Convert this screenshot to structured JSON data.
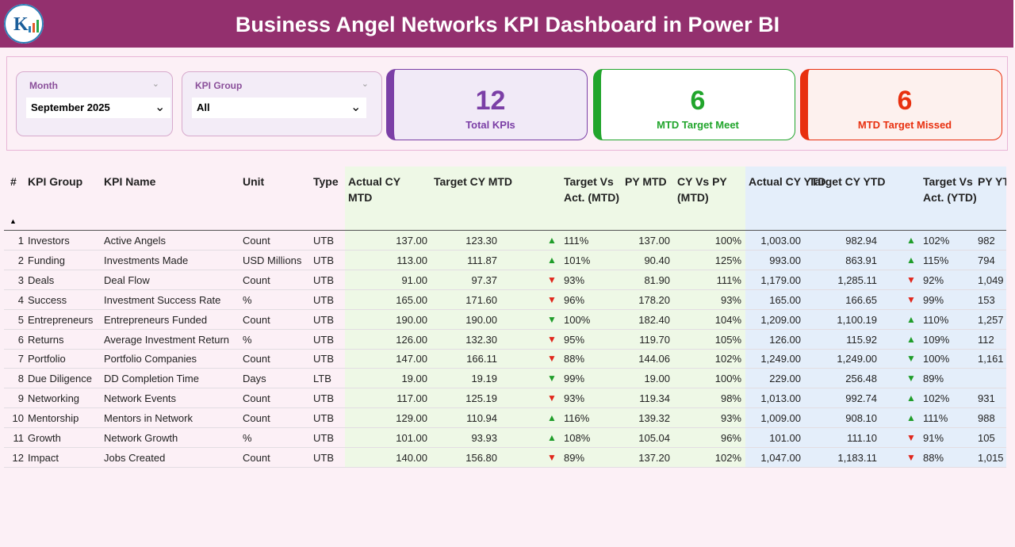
{
  "header": {
    "title": "Business Angel Networks KPI Dashboard in Power BI"
  },
  "filters": [
    {
      "label": "Month",
      "value": "September 2025"
    },
    {
      "label": "KPI Group",
      "value": "All"
    }
  ],
  "cards": [
    {
      "value": 12,
      "label": "Total KPIs",
      "color": "#7b3fa6"
    },
    {
      "value": 6,
      "label": "MTD Target Meet",
      "color": "#21a52c"
    },
    {
      "value": 6,
      "label": "MTD Target Missed",
      "color": "#e8300f"
    }
  ],
  "table": {
    "columns": [
      "#",
      "KPI Group",
      "KPI Name",
      "Unit",
      "Type",
      "Actual CY MTD",
      "Target CY MTD",
      "Target Vs Act. (MTD)",
      "PY MTD",
      "CY Vs PY (MTD)",
      "Actual CY YTD",
      "Target CY YTD",
      "Target Vs Act. (YTD)",
      "PY YTD"
    ],
    "sort_icon": "▲",
    "rows": [
      {
        "n": 1,
        "group": "Investors",
        "name": "Active Angels",
        "unit": "Count",
        "type": "UTB",
        "actual_mtd": "137.00",
        "target_mtd": "123.30",
        "mtd_arrow": {
          "symbol": "▲",
          "color": "#1f9d2a"
        },
        "mtd_pct": "111%",
        "py_mtd": "137.00",
        "cy_vs_py": "100%",
        "actual_ytd": "1,003.00",
        "target_ytd": "982.94",
        "ytd_arrow": {
          "symbol": "▲",
          "color": "#1f9d2a"
        },
        "ytd_pct": "102%",
        "py_ytd": "982"
      },
      {
        "n": 2,
        "group": "Funding",
        "name": "Investments Made",
        "unit": "USD Millions",
        "type": "UTB",
        "actual_mtd": "113.00",
        "target_mtd": "111.87",
        "mtd_arrow": {
          "symbol": "▲",
          "color": "#1f9d2a"
        },
        "mtd_pct": "101%",
        "py_mtd": "90.40",
        "cy_vs_py": "125%",
        "actual_ytd": "993.00",
        "target_ytd": "863.91",
        "ytd_arrow": {
          "symbol": "▲",
          "color": "#1f9d2a"
        },
        "ytd_pct": "115%",
        "py_ytd": "794"
      },
      {
        "n": 3,
        "group": "Deals",
        "name": "Deal Flow",
        "unit": "Count",
        "type": "UTB",
        "actual_mtd": "91.00",
        "target_mtd": "97.37",
        "mtd_arrow": {
          "symbol": "▼",
          "color": "#e0261b"
        },
        "mtd_pct": "93%",
        "py_mtd": "81.90",
        "cy_vs_py": "111%",
        "actual_ytd": "1,179.00",
        "target_ytd": "1,285.11",
        "ytd_arrow": {
          "symbol": "▼",
          "color": "#e0261b"
        },
        "ytd_pct": "92%",
        "py_ytd": "1,049"
      },
      {
        "n": 4,
        "group": "Success",
        "name": "Investment Success Rate",
        "unit": "%",
        "type": "UTB",
        "actual_mtd": "165.00",
        "target_mtd": "171.60",
        "mtd_arrow": {
          "symbol": "▼",
          "color": "#e0261b"
        },
        "mtd_pct": "96%",
        "py_mtd": "178.20",
        "cy_vs_py": "93%",
        "actual_ytd": "165.00",
        "target_ytd": "166.65",
        "ytd_arrow": {
          "symbol": "▼",
          "color": "#e0261b"
        },
        "ytd_pct": "99%",
        "py_ytd": "153"
      },
      {
        "n": 5,
        "group": "Entrepreneurs",
        "name": "Entrepreneurs Funded",
        "unit": "Count",
        "type": "UTB",
        "actual_mtd": "190.00",
        "target_mtd": "190.00",
        "mtd_arrow": {
          "symbol": "▼",
          "color": "#1f9d2a"
        },
        "mtd_pct": "100%",
        "py_mtd": "182.40",
        "cy_vs_py": "104%",
        "actual_ytd": "1,209.00",
        "target_ytd": "1,100.19",
        "ytd_arrow": {
          "symbol": "▲",
          "color": "#1f9d2a"
        },
        "ytd_pct": "110%",
        "py_ytd": "1,257"
      },
      {
        "n": 6,
        "group": "Returns",
        "name": "Average Investment Return",
        "unit": "%",
        "type": "UTB",
        "actual_mtd": "126.00",
        "target_mtd": "132.30",
        "mtd_arrow": {
          "symbol": "▼",
          "color": "#e0261b"
        },
        "mtd_pct": "95%",
        "py_mtd": "119.70",
        "cy_vs_py": "105%",
        "actual_ytd": "126.00",
        "target_ytd": "115.92",
        "ytd_arrow": {
          "symbol": "▲",
          "color": "#1f9d2a"
        },
        "ytd_pct": "109%",
        "py_ytd": "112"
      },
      {
        "n": 7,
        "group": "Portfolio",
        "name": "Portfolio Companies",
        "unit": "Count",
        "type": "UTB",
        "actual_mtd": "147.00",
        "target_mtd": "166.11",
        "mtd_arrow": {
          "symbol": "▼",
          "color": "#e0261b"
        },
        "mtd_pct": "88%",
        "py_mtd": "144.06",
        "cy_vs_py": "102%",
        "actual_ytd": "1,249.00",
        "target_ytd": "1,249.00",
        "ytd_arrow": {
          "symbol": "▼",
          "color": "#1f9d2a"
        },
        "ytd_pct": "100%",
        "py_ytd": "1,161"
      },
      {
        "n": 8,
        "group": "Due Diligence",
        "name": "DD Completion Time",
        "unit": "Days",
        "type": "LTB",
        "actual_mtd": "19.00",
        "target_mtd": "19.19",
        "mtd_arrow": {
          "symbol": "▼",
          "color": "#1f9d2a"
        },
        "mtd_pct": "99%",
        "py_mtd": "19.00",
        "cy_vs_py": "100%",
        "actual_ytd": "229.00",
        "target_ytd": "256.48",
        "ytd_arrow": {
          "symbol": "▼",
          "color": "#1f9d2a"
        },
        "ytd_pct": "89%",
        "py_ytd": null
      },
      {
        "n": 9,
        "group": "Networking",
        "name": "Network Events",
        "unit": "Count",
        "type": "UTB",
        "actual_mtd": "117.00",
        "target_mtd": "125.19",
        "mtd_arrow": {
          "symbol": "▼",
          "color": "#e0261b"
        },
        "mtd_pct": "93%",
        "py_mtd": "119.34",
        "cy_vs_py": "98%",
        "actual_ytd": "1,013.00",
        "target_ytd": "992.74",
        "ytd_arrow": {
          "symbol": "▲",
          "color": "#1f9d2a"
        },
        "ytd_pct": "102%",
        "py_ytd": "931"
      },
      {
        "n": 10,
        "group": "Mentorship",
        "name": "Mentors in Network",
        "unit": "Count",
        "type": "UTB",
        "actual_mtd": "129.00",
        "target_mtd": "110.94",
        "mtd_arrow": {
          "symbol": "▲",
          "color": "#1f9d2a"
        },
        "mtd_pct": "116%",
        "py_mtd": "139.32",
        "cy_vs_py": "93%",
        "actual_ytd": "1,009.00",
        "target_ytd": "908.10",
        "ytd_arrow": {
          "symbol": "▲",
          "color": "#1f9d2a"
        },
        "ytd_pct": "111%",
        "py_ytd": "988"
      },
      {
        "n": 11,
        "group": "Growth",
        "name": "Network Growth",
        "unit": "%",
        "type": "UTB",
        "actual_mtd": "101.00",
        "target_mtd": "93.93",
        "mtd_arrow": {
          "symbol": "▲",
          "color": "#1f9d2a"
        },
        "mtd_pct": "108%",
        "py_mtd": "105.04",
        "cy_vs_py": "96%",
        "actual_ytd": "101.00",
        "target_ytd": "111.10",
        "ytd_arrow": {
          "symbol": "▼",
          "color": "#e0261b"
        },
        "ytd_pct": "91%",
        "py_ytd": "105"
      },
      {
        "n": 12,
        "group": "Impact",
        "name": "Jobs Created",
        "unit": "Count",
        "type": "UTB",
        "actual_mtd": "140.00",
        "target_mtd": "156.80",
        "mtd_arrow": {
          "symbol": "▼",
          "color": "#e0261b"
        },
        "mtd_pct": "89%",
        "py_mtd": "137.20",
        "cy_vs_py": "102%",
        "actual_ytd": "1,047.00",
        "target_ytd": "1,183.11",
        "ytd_arrow": {
          "symbol": "▼",
          "color": "#e0261b"
        },
        "ytd_pct": "88%",
        "py_ytd": "1,015"
      }
    ]
  }
}
